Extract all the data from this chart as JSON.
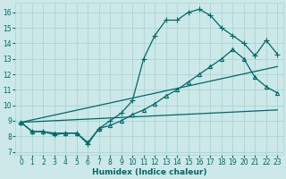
{
  "xlabel": "Humidex (Indice chaleur)",
  "xlim": [
    -0.5,
    23.5
  ],
  "ylim": [
    6.8,
    16.6
  ],
  "xticks": [
    0,
    1,
    2,
    3,
    4,
    5,
    6,
    7,
    8,
    9,
    10,
    11,
    12,
    13,
    14,
    15,
    16,
    17,
    18,
    19,
    20,
    21,
    22,
    23
  ],
  "yticks": [
    7,
    8,
    9,
    10,
    11,
    12,
    13,
    14,
    15,
    16
  ],
  "bg_color": "#cce8e8",
  "grid_color": "#aad4d4",
  "line_color": "#006868",
  "lines": [
    {
      "x": [
        0,
        1,
        2,
        3,
        4,
        5,
        6,
        7,
        8,
        9,
        10,
        11,
        12,
        13,
        14,
        15,
        16,
        17,
        18,
        19,
        20,
        21,
        22,
        23
      ],
      "y": [
        8.9,
        8.3,
        8.3,
        8.1,
        8.2,
        8.2,
        7.5,
        8.5,
        9.0,
        9.5,
        10.3,
        13.0,
        14.5,
        15.5,
        15.5,
        16.0,
        16.2,
        15.8,
        15.0,
        14.5,
        14.0,
        13.2,
        14.2,
        13.3
      ],
      "marker": "+",
      "lw": 0.9,
      "ms": 4
    },
    {
      "x": [
        0,
        1,
        2,
        3,
        4,
        5,
        6,
        7,
        8,
        9,
        10,
        11,
        12,
        13,
        14,
        15,
        16,
        17,
        18,
        19,
        20,
        21,
        22,
        23
      ],
      "y": [
        8.9,
        8.3,
        8.3,
        8.2,
        8.2,
        8.2,
        7.6,
        8.5,
        8.7,
        9.0,
        9.4,
        9.7,
        10.1,
        10.6,
        11.0,
        11.5,
        12.0,
        12.5,
        13.0,
        13.6,
        13.0,
        11.8,
        11.2,
        10.8
      ],
      "marker": "^",
      "lw": 0.9,
      "ms": 3
    },
    {
      "x": [
        0,
        23
      ],
      "y": [
        8.9,
        12.5
      ],
      "marker": null,
      "lw": 0.9,
      "ms": 0
    },
    {
      "x": [
        0,
        23
      ],
      "y": [
        8.9,
        9.7
      ],
      "marker": null,
      "lw": 0.9,
      "ms": 0
    }
  ],
  "font_color": "#006868",
  "tick_fontsize": 5.5,
  "label_fontsize": 6.5
}
